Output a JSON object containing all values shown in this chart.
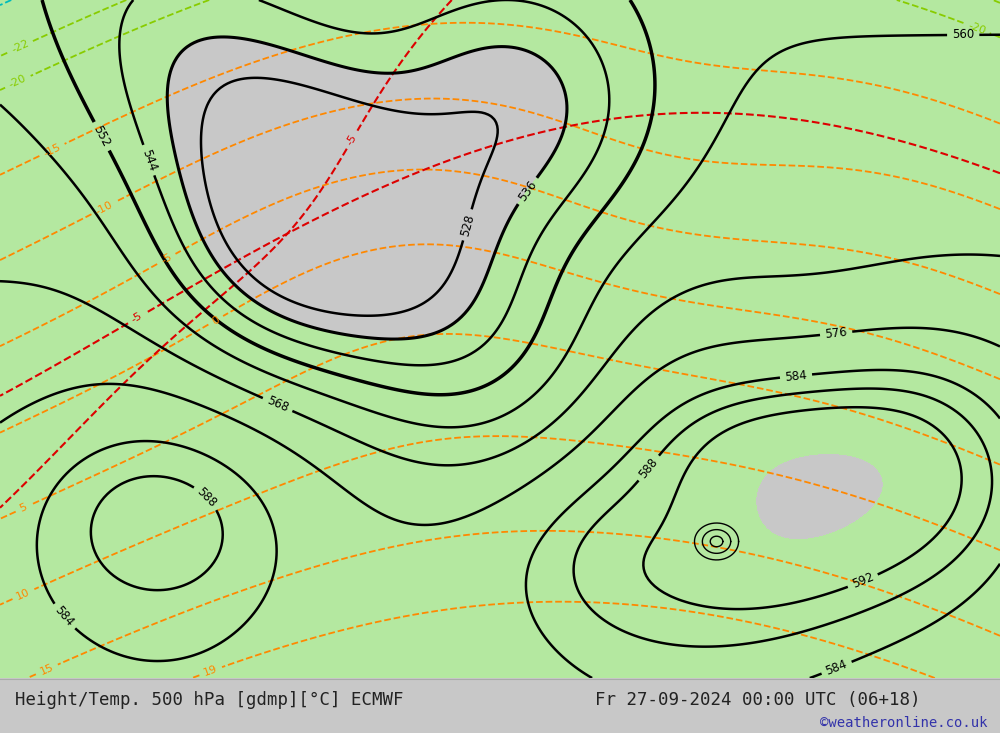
{
  "title_left": "Height/Temp. 500 hPa [gdmp][°C] ECMWF",
  "title_right": "Fr 27-09-2024 00:00 UTC (06+18)",
  "credit": "©weatheronline.co.uk",
  "ocean_color": "#d0d0d8",
  "land_color": "#c8c8c8",
  "green_fill_color": "#b4e8a0",
  "bottom_bar_color": "#e8e8e8",
  "title_fontsize": 12.5,
  "credit_fontsize": 10,
  "contour_black_color": "#000000",
  "contour_red_color": "#dd0000",
  "contour_orange_color": "#ff8800",
  "contour_ygreen_color": "#88cc00",
  "contour_cyan_color": "#00bbbb",
  "label_fontsize": 8.5,
  "map_lon_min": -175,
  "map_lon_max": -48,
  "map_lat_min": 10,
  "map_lat_max": 82
}
